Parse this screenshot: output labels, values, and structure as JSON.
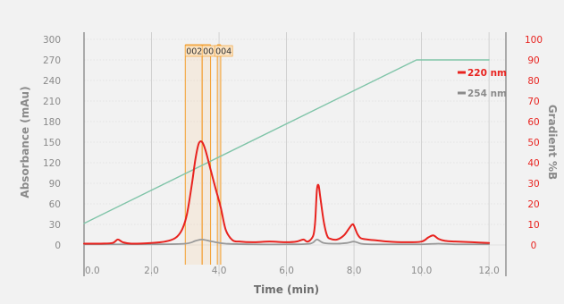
{
  "chart_data": {
    "type": "line",
    "xlabel": "Time (min)",
    "ylabel_left": "Absorbance (mAu)",
    "ylabel_right": "Gradient %B",
    "xlim": [
      0,
      12.5
    ],
    "ylim_left": [
      0,
      300
    ],
    "ylim_right": [
      0,
      100
    ],
    "x_ticks": [
      "0.0",
      "2.0",
      "4.0",
      "6.0",
      "8.0",
      "10.0",
      "12.0"
    ],
    "x_tick_values": [
      0,
      2,
      4,
      6,
      8,
      10,
      12
    ],
    "y_left_ticks": [
      "0",
      "30",
      "60",
      "90",
      "120",
      "150",
      "180",
      "210",
      "240",
      "270",
      "300"
    ],
    "y_left_tick_values": [
      0,
      30,
      60,
      90,
      120,
      150,
      180,
      210,
      240,
      270,
      300
    ],
    "y_right_ticks": [
      "0",
      "10",
      "20",
      "30",
      "40",
      "50",
      "60",
      "70",
      "80",
      "90",
      "100"
    ],
    "y_right_tick_values": [
      0,
      10,
      20,
      30,
      40,
      50,
      60,
      70,
      80,
      90,
      100
    ],
    "grid": "vertical",
    "legend_position": "top-right",
    "series": [
      {
        "name": "220 nm",
        "axis": "left",
        "color": "#e8231f",
        "x": [
          0,
          0.5,
          0.85,
          1.0,
          1.15,
          1.4,
          2.0,
          2.4,
          2.7,
          2.9,
          3.05,
          3.2,
          3.3,
          3.4,
          3.5,
          3.6,
          3.75,
          3.9,
          4.05,
          4.2,
          4.4,
          4.6,
          5.0,
          5.5,
          6.0,
          6.3,
          6.5,
          6.6,
          6.7,
          6.8,
          6.85,
          6.9,
          6.95,
          7.0,
          7.1,
          7.2,
          7.3,
          7.5,
          7.7,
          7.85,
          7.95,
          8.0,
          8.1,
          8.2,
          8.4,
          8.6,
          9.0,
          9.5,
          10.0,
          10.2,
          10.35,
          10.5,
          10.7,
          11.0,
          11.5,
          12.0
        ],
        "y": [
          2,
          2,
          3,
          8,
          4,
          2,
          3,
          5,
          10,
          22,
          45,
          90,
          125,
          148,
          150,
          138,
          110,
          82,
          55,
          22,
          7,
          5,
          4,
          5,
          4,
          5,
          8,
          5,
          7,
          15,
          35,
          80,
          87,
          70,
          35,
          14,
          9,
          8,
          14,
          24,
          30,
          28,
          16,
          10,
          8,
          7,
          5,
          4,
          5,
          11,
          14,
          9,
          6,
          5,
          4,
          3
        ]
      },
      {
        "name": "254 nm",
        "axis": "left",
        "color": "#999999",
        "x": [
          0,
          1.0,
          2.0,
          3.0,
          3.3,
          3.5,
          3.8,
          4.2,
          5.0,
          6.0,
          6.7,
          6.9,
          7.1,
          7.5,
          7.8,
          8.0,
          8.2,
          8.5,
          9.0,
          10.0,
          10.5,
          11.0,
          12.0
        ],
        "y": [
          1,
          1,
          1,
          2,
          6,
          8,
          5,
          2,
          1,
          1,
          2,
          8,
          3,
          2,
          3,
          5,
          2,
          1,
          1,
          1,
          2,
          1,
          1
        ]
      },
      {
        "name": "Gradient %B",
        "axis": "right",
        "color": "#7fc4a8",
        "x": [
          0,
          9.85,
          12.0
        ],
        "y": [
          10.5,
          90,
          90
        ]
      }
    ],
    "fractions": [
      {
        "label": "002",
        "start": 3.0,
        "end": 3.5
      },
      {
        "label": "003",
        "start": 3.5,
        "end": 3.75
      },
      {
        "label": "004",
        "start": 3.95,
        "end": 4.05
      }
    ]
  }
}
